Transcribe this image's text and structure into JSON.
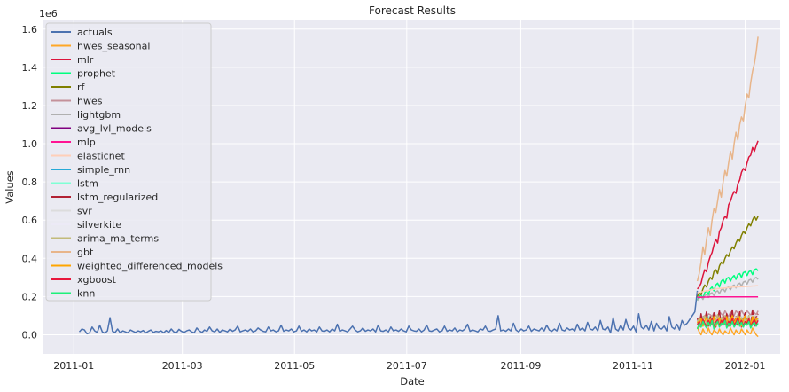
{
  "chart_data": {
    "type": "line",
    "title": "Forecast Results",
    "xlabel": "Date",
    "ylabel": "Values",
    "y_scale_label": "1e6",
    "x_range": [
      "2010-12-15",
      "2012-01-20"
    ],
    "ylim": [
      -100000,
      1650000
    ],
    "x_ticks": [
      "2011-01",
      "2011-03",
      "2011-05",
      "2011-07",
      "2011-09",
      "2011-11",
      "2012-01"
    ],
    "x_tick_dates": [
      "2011-01-01",
      "2011-03-01",
      "2011-05-01",
      "2011-07-01",
      "2011-09-01",
      "2011-11-01",
      "2012-01-01"
    ],
    "y_ticks": [
      0.0,
      0.2,
      0.4,
      0.6,
      0.8,
      1.0,
      1.2,
      1.4,
      1.6
    ],
    "y_tick_labels": [
      "0.0",
      "0.2",
      "0.4",
      "0.6",
      "0.8",
      "1.0",
      "1.2",
      "1.4",
      "1.6"
    ],
    "grid": true,
    "legend_position": "upper-left",
    "history_start": "2011-01-04",
    "forecast_start": "2011-12-06",
    "forecast_dates_end": "2012-01-08",
    "series": [
      {
        "name": "actuals",
        "color": "#4c72b0",
        "values": [
          15000,
          30000,
          25000,
          5000,
          10000,
          40000,
          20000,
          12000,
          50000,
          15000,
          8000,
          20000,
          90000,
          18000,
          12000,
          30000,
          10000,
          20000,
          15000,
          10000,
          25000,
          18000,
          12000,
          20000,
          15000,
          22000,
          10000,
          18000,
          25000,
          12000,
          18000,
          15000,
          20000,
          10000,
          22000,
          12000,
          30000,
          15000,
          10000,
          28000,
          18000,
          12000,
          20000,
          25000,
          15000,
          10000,
          35000,
          20000,
          12000,
          25000,
          18000,
          40000,
          20000,
          15000,
          30000,
          12000,
          25000,
          20000,
          15000,
          30000,
          18000,
          25000,
          45000,
          15000,
          20000,
          25000,
          18000,
          30000,
          15000,
          20000,
          35000,
          25000,
          18000,
          15000,
          40000,
          20000,
          25000,
          15000,
          20000,
          50000,
          18000,
          25000,
          20000,
          30000,
          15000,
          20000,
          45000,
          18000,
          25000,
          15000,
          30000,
          20000,
          25000,
          15000,
          40000,
          20000,
          18000,
          25000,
          15000,
          30000,
          20000,
          55000,
          18000,
          25000,
          20000,
          15000,
          30000,
          45000,
          25000,
          15000,
          20000,
          35000,
          18000,
          25000,
          20000,
          30000,
          15000,
          50000,
          20000,
          18000,
          25000,
          15000,
          40000,
          20000,
          25000,
          18000,
          30000,
          20000,
          15000,
          45000,
          25000,
          20000,
          18000,
          30000,
          15000,
          25000,
          50000,
          20000,
          18000,
          25000,
          30000,
          15000,
          20000,
          45000,
          18000,
          25000,
          20000,
          35000,
          15000,
          25000,
          20000,
          30000,
          55000,
          18000,
          25000,
          20000,
          15000,
          30000,
          25000,
          45000,
          20000,
          18000,
          25000,
          30000,
          100000,
          20000,
          25000,
          18000,
          30000,
          20000,
          60000,
          25000,
          15000,
          30000,
          20000,
          25000,
          45000,
          18000,
          30000,
          25000,
          20000,
          35000,
          20000,
          50000,
          25000,
          18000,
          30000,
          20000,
          60000,
          25000,
          20000,
          35000,
          25000,
          30000,
          20000,
          55000,
          25000,
          35000,
          20000,
          65000,
          30000,
          25000,
          40000,
          20000,
          75000,
          30000,
          25000,
          40000,
          10000,
          90000,
          30000,
          20000,
          50000,
          25000,
          80000,
          35000,
          25000,
          45000,
          15000,
          110000,
          40000,
          30000,
          50000,
          25000,
          70000,
          20000,
          60000,
          35000,
          30000,
          45000,
          20000,
          95000,
          40000,
          30000,
          55000,
          25000,
          75000,
          50000,
          60000,
          80000,
          100000,
          120000,
          230000
        ]
      },
      {
        "name": "hwes_seasonal",
        "color": "#ffa726",
        "values": [
          40000,
          15000,
          0,
          30000,
          10000,
          5000,
          35000,
          10000,
          0,
          25000,
          15000,
          5000,
          30000,
          10000,
          0,
          20000,
          10000,
          5000,
          35000,
          15000,
          0,
          25000,
          10000,
          5000,
          30000,
          15000,
          0,
          25000,
          10000,
          5000,
          35000,
          15000,
          0,
          -10000
        ]
      },
      {
        "name": "mlr",
        "color": "#dc143c",
        "values": [
          240000,
          250000,
          270000,
          310000,
          340000,
          330000,
          380000,
          410000,
          430000,
          470000,
          500000,
          480000,
          540000,
          560000,
          600000,
          620000,
          610000,
          680000,
          700000,
          730000,
          750000,
          740000,
          790000,
          810000,
          850000,
          870000,
          860000,
          900000,
          930000,
          940000,
          980000,
          960000,
          990000,
          1015000
        ]
      },
      {
        "name": "prophet",
        "color": "#00ff7f",
        "values": [
          180000,
          200000,
          210000,
          190000,
          220000,
          230000,
          210000,
          240000,
          250000,
          230000,
          260000,
          270000,
          250000,
          280000,
          290000,
          270000,
          295000,
          300000,
          280000,
          300000,
          310000,
          290000,
          315000,
          320000,
          300000,
          325000,
          330000,
          310000,
          330000,
          335000,
          315000,
          340000,
          345000,
          335000
        ]
      },
      {
        "name": "rf",
        "color": "#808000",
        "values": [
          200000,
          220000,
          210000,
          240000,
          260000,
          250000,
          280000,
          300000,
          290000,
          330000,
          340000,
          320000,
          360000,
          380000,
          370000,
          400000,
          420000,
          410000,
          440000,
          460000,
          450000,
          480000,
          500000,
          490000,
          520000,
          540000,
          530000,
          560000,
          580000,
          570000,
          600000,
          620000,
          600000,
          620000
        ]
      },
      {
        "name": "hwes",
        "color": "#c4919a",
        "values": [
          80000,
          90000,
          85000,
          95000,
          100000,
          90000,
          110000,
          105000,
          95000,
          115000,
          100000,
          90000,
          120000,
          110000,
          100000,
          125000,
          110000,
          95000,
          120000,
          105000,
          100000,
          125000,
          115000,
          100000,
          130000,
          110000,
          105000,
          125000,
          115000,
          100000,
          130000,
          115000,
          105000,
          125000
        ]
      },
      {
        "name": "lightgbm",
        "color": "#b0b0b0",
        "values": [
          180000,
          190000,
          200000,
          185000,
          205000,
          210000,
          195000,
          215000,
          220000,
          205000,
          225000,
          230000,
          215000,
          235000,
          240000,
          225000,
          245000,
          250000,
          235000,
          255000,
          260000,
          245000,
          265000,
          270000,
          255000,
          275000,
          280000,
          265000,
          285000,
          290000,
          275000,
          295000,
          300000,
          290000
        ]
      },
      {
        "name": "avg_lvl_models",
        "color": "#800080",
        "values": [
          60000,
          55000,
          65000,
          58000,
          62000,
          56000,
          64000,
          60000,
          57000,
          63000,
          59000,
          61000,
          56000,
          64000,
          60000,
          58000,
          62000,
          57000,
          63000,
          59000,
          61000,
          56000,
          64000,
          60000,
          58000,
          62000,
          57000,
          63000,
          59000,
          61000,
          56000,
          64000,
          60000,
          58000
        ]
      },
      {
        "name": "mlp",
        "color": "#ff1493",
        "values": [
          195000,
          196000,
          196000,
          197000,
          197000,
          197000,
          197000,
          198000,
          198000,
          198000,
          198000,
          198000,
          198000,
          198000,
          198000,
          198000,
          198000,
          198000,
          198000,
          198000,
          198000,
          198000,
          198000,
          198000,
          198000,
          198000,
          198000,
          198000,
          198000,
          198000,
          198000,
          198000,
          198000,
          198000
        ]
      },
      {
        "name": "elasticnet",
        "color": "#ffcfb8",
        "values": [
          220000,
          222000,
          224000,
          226000,
          228000,
          230000,
          232000,
          234000,
          236000,
          238000,
          240000,
          241000,
          242000,
          243000,
          244000,
          245000,
          246000,
          247000,
          248000,
          249000,
          250000,
          250000,
          251000,
          251000,
          252000,
          252000,
          253000,
          253000,
          254000,
          254000,
          255000,
          255000,
          256000,
          256000
        ]
      },
      {
        "name": "simple_rnn",
        "color": "#27a9d6",
        "values": [
          50000,
          70000,
          40000,
          60000,
          80000,
          45000,
          65000,
          50000,
          75000,
          40000,
          60000,
          85000,
          45000,
          70000,
          55000,
          80000,
          40000,
          65000,
          50000,
          75000,
          45000,
          60000,
          80000,
          50000,
          70000,
          45000,
          65000,
          55000,
          80000,
          40000,
          60000,
          75000,
          50000,
          65000
        ]
      },
      {
        "name": "lstm",
        "color": "#7fffd4",
        "values": [
          70000,
          80000,
          60000,
          90000,
          75000,
          65000,
          95000,
          70000,
          60000,
          85000,
          80000,
          65000,
          90000,
          75000,
          60000,
          95000,
          70000,
          65000,
          85000,
          80000,
          60000,
          90000,
          75000,
          65000,
          95000,
          70000,
          60000,
          85000,
          80000,
          65000,
          90000,
          75000,
          60000,
          80000
        ]
      },
      {
        "name": "lstm_regularized",
        "color": "#b22234",
        "values": [
          90000,
          40000,
          110000,
          50000,
          80000,
          120000,
          45000,
          95000,
          55000,
          115000,
          40000,
          85000,
          125000,
          50000,
          100000,
          60000,
          110000,
          45000,
          90000,
          130000,
          55000,
          95000,
          50000,
          120000,
          40000,
          85000,
          115000,
          60000,
          100000,
          50000,
          125000,
          45000,
          95000,
          110000
        ]
      },
      {
        "name": "svr",
        "color": "#dcdcdc",
        "values": [
          70000,
          71000,
          72000,
          73000,
          74000,
          75000,
          76000,
          77000,
          78000,
          79000,
          80000,
          81000,
          82000,
          83000,
          84000,
          85000,
          86000,
          87000,
          88000,
          89000,
          90000,
          91000,
          92000,
          93000,
          94000,
          95000,
          96000,
          97000,
          98000,
          99000,
          100000,
          101000,
          102000,
          103000
        ]
      },
      {
        "name": "silverkite",
        "color": "#eceaf6",
        "values": [
          40000,
          70000,
          30000,
          60000,
          80000,
          35000,
          65000,
          45000,
          75000,
          30000,
          60000,
          85000,
          40000,
          70000,
          50000,
          80000,
          35000,
          65000,
          45000,
          75000,
          40000,
          60000,
          85000,
          45000,
          70000,
          40000,
          65000,
          50000,
          80000,
          35000,
          60000,
          75000,
          45000,
          65000
        ]
      },
      {
        "name": "arima_ma_terms",
        "color": "#c2bb7a",
        "values": [
          60000,
          90000,
          50000,
          80000,
          100000,
          55000,
          85000,
          65000,
          95000,
          50000,
          80000,
          105000,
          60000,
          90000,
          70000,
          100000,
          55000,
          85000,
          65000,
          95000,
          60000,
          80000,
          105000,
          65000,
          90000,
          60000,
          85000,
          70000,
          100000,
          55000,
          80000,
          95000,
          65000,
          85000
        ]
      },
      {
        "name": "gbt",
        "color": "#e8b58a",
        "values": [
          280000,
          320000,
          380000,
          460000,
          420000,
          500000,
          560000,
          520000,
          600000,
          660000,
          640000,
          700000,
          760000,
          720000,
          800000,
          860000,
          830000,
          900000,
          960000,
          920000,
          1000000,
          1060000,
          1020000,
          1100000,
          1140000,
          1120000,
          1200000,
          1260000,
          1240000,
          1320000,
          1380000,
          1420000,
          1480000,
          1560000
        ]
      },
      {
        "name": "weighted_differenced_models",
        "color": "#ffa500",
        "values": [
          70000,
          50000,
          85000,
          45000,
          75000,
          90000,
          50000,
          80000,
          60000,
          95000,
          45000,
          70000,
          90000,
          55000,
          80000,
          60000,
          95000,
          50000,
          75000,
          100000,
          55000,
          85000,
          60000,
          95000,
          45000,
          80000,
          100000,
          60000,
          85000,
          50000,
          95000,
          55000,
          80000,
          90000
        ]
      },
      {
        "name": "xgboost",
        "color": "#e8173c",
        "values": [
          50000,
          70000,
          40000,
          80000,
          60000,
          45000,
          75000,
          55000,
          85000,
          40000,
          65000,
          80000,
          45000,
          75000,
          60000,
          90000,
          40000,
          70000,
          55000,
          85000,
          50000,
          65000,
          90000,
          50000,
          75000,
          45000,
          70000,
          60000,
          85000,
          40000,
          65000,
          80000,
          55000,
          75000
        ]
      },
      {
        "name": "knn",
        "color": "#1ef07a",
        "values": [
          30000,
          60000,
          40000,
          70000,
          50000,
          35000,
          65000,
          45000,
          75000,
          30000,
          55000,
          70000,
          40000,
          60000,
          50000,
          75000,
          35000,
          60000,
          45000,
          70000,
          40000,
          55000,
          75000,
          45000,
          65000,
          40000,
          60000,
          50000,
          70000,
          35000,
          55000,
          65000,
          45000,
          60000
        ]
      }
    ]
  }
}
